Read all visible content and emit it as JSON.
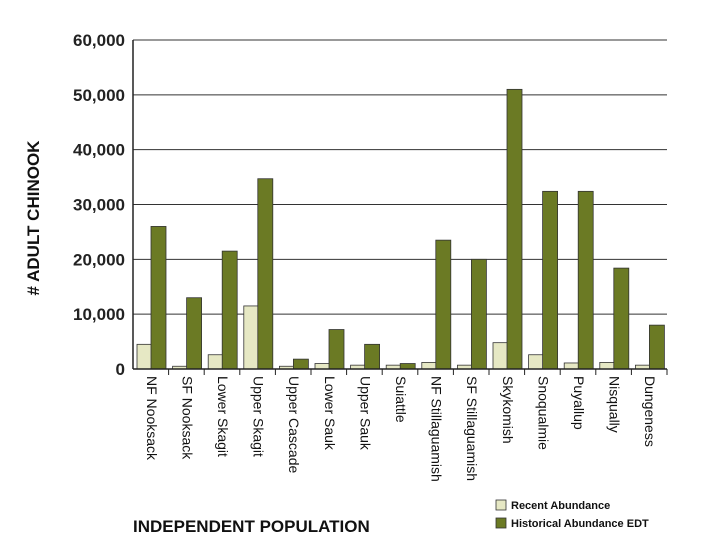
{
  "chart_data": {
    "type": "bar",
    "title": "",
    "xlabel": "INDEPENDENT POPULATION",
    "ylabel": "# ADULT CHINOOK",
    "ylim": [
      0,
      60000
    ],
    "yticks": [
      0,
      10000,
      20000,
      30000,
      40000,
      50000,
      60000
    ],
    "ytick_labels": [
      "0",
      "10,000",
      "20,000",
      "30,000",
      "40,000",
      "50,000",
      "60,000"
    ],
    "grid": "horizontal",
    "legend_position": "bottom-right",
    "categories": [
      "NF Nooksack",
      "SF Nooksack",
      "Lower Skagit",
      "Upper Skagit",
      "Upper Cascade",
      "Lower Sauk",
      "Upper Sauk",
      "Suiattle",
      "NF Stillaguamish",
      "SF Stillaguamish",
      "Skykomish",
      "Snoqualmie",
      "Puyallup",
      "Nisqually",
      "Dungeness"
    ],
    "series": [
      {
        "name": "Recent Abundance",
        "color": "#e6e8c4",
        "values": [
          4500,
          500,
          2600,
          11500,
          500,
          1000,
          700,
          700,
          1200,
          700,
          4800,
          2600,
          1100,
          1200,
          700
        ]
      },
      {
        "name": "Historical Abundance EDT",
        "color": "#6b7a24",
        "values": [
          26000,
          13000,
          21500,
          34700,
          1800,
          7200,
          4500,
          1000,
          23500,
          20000,
          51000,
          32400,
          32400,
          18400,
          8000
        ]
      }
    ]
  }
}
